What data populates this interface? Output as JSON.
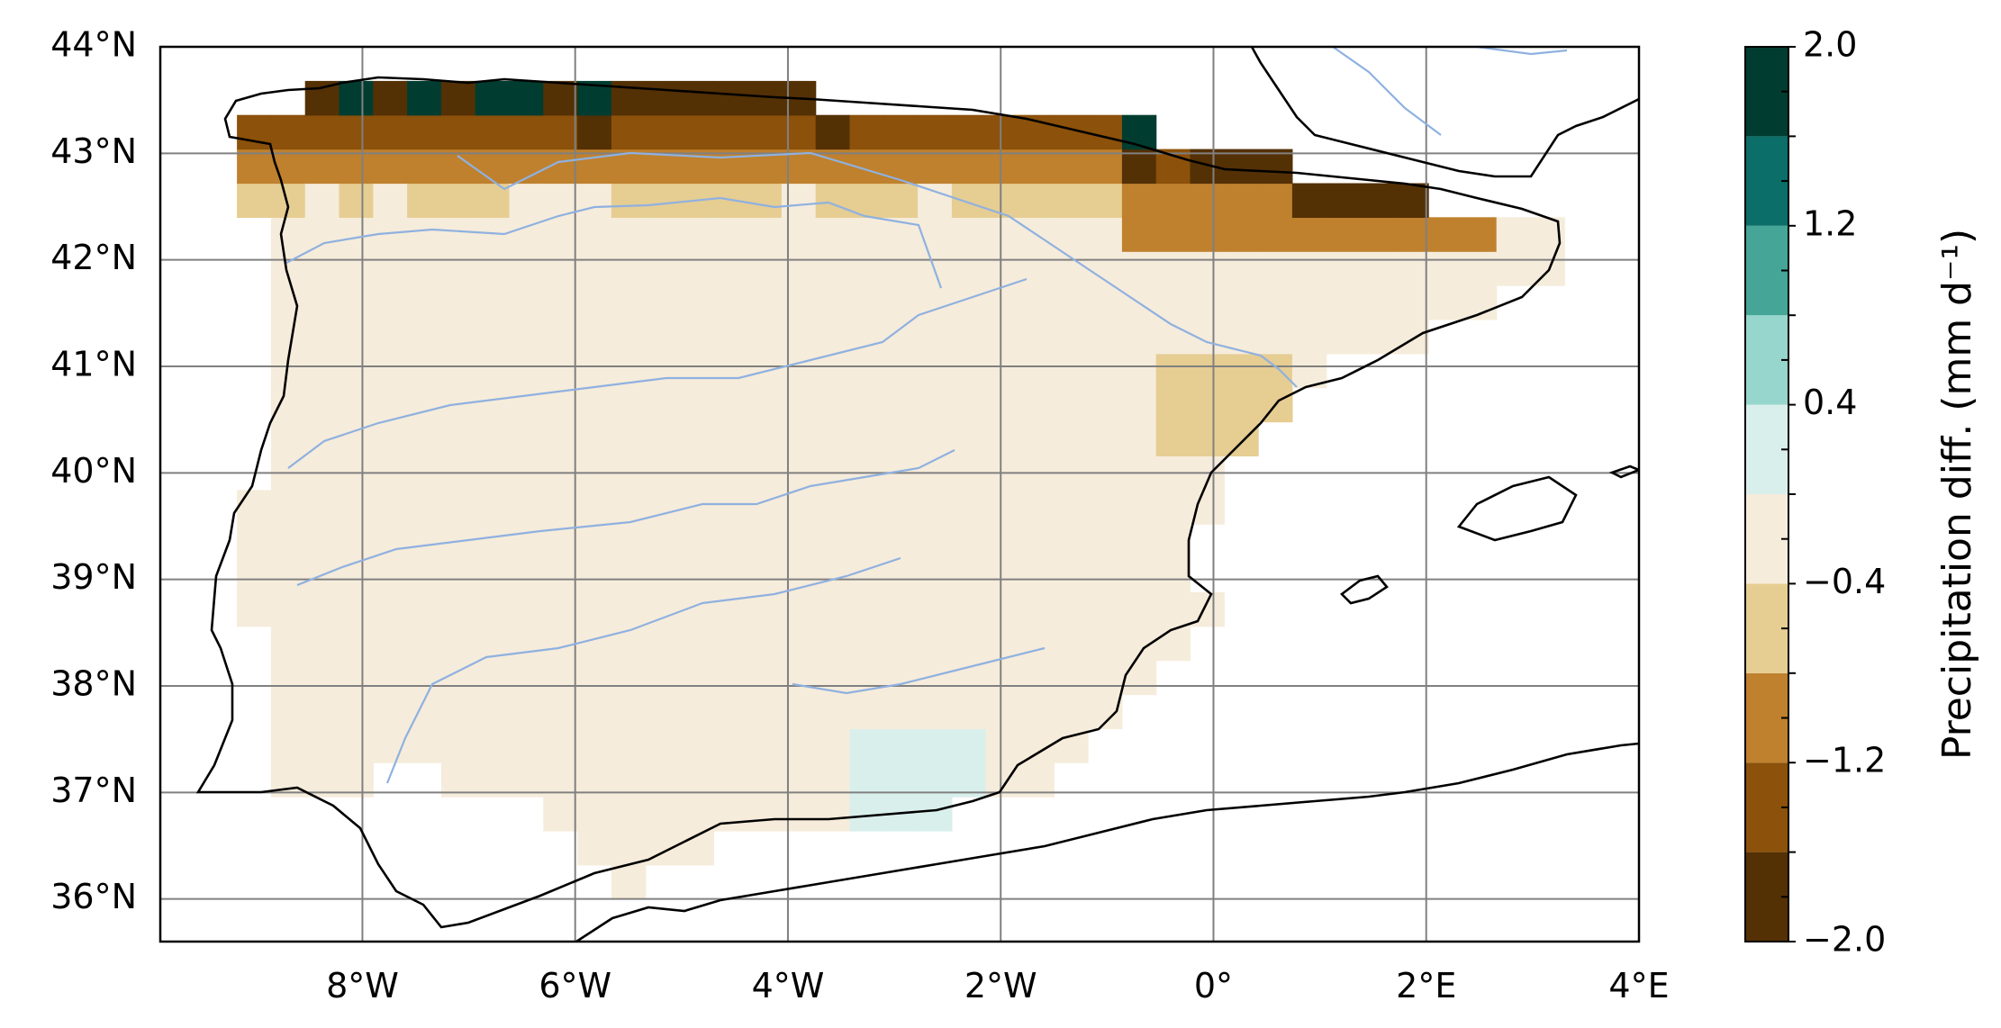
{
  "map": {
    "lon_labels": [
      "8°W",
      "6°W",
      "4°W",
      "2°W",
      "0°",
      "2°E",
      "4°E"
    ],
    "lat_labels": [
      "44°N",
      "43°N",
      "42°N",
      "41°N",
      "40°N",
      "39°N",
      "38°N",
      "37°N",
      "36°N"
    ],
    "extent": {
      "lon_min": -9.9,
      "lon_max": 4.0,
      "lat_min": 35.6,
      "lat_max": 44.0
    },
    "grid": true,
    "cell_size_deg": 0.32
  },
  "colorbar": {
    "label": "Precipitation diff. (mm d⁻¹)",
    "tick_labels": [
      "2.0",
      "1.2",
      "0.4",
      "−0.4",
      "−1.2",
      "−2.0"
    ],
    "bins": [
      {
        "from": -2.0,
        "to": -1.6,
        "color": "#543005"
      },
      {
        "from": -1.6,
        "to": -1.2,
        "color": "#8c510a"
      },
      {
        "from": -1.2,
        "to": -0.8,
        "color": "#bf812d"
      },
      {
        "from": -0.8,
        "to": -0.4,
        "color": "#e6cd92"
      },
      {
        "from": -0.4,
        "to": 0.0,
        "color": "#f6ecdb"
      },
      {
        "from": 0.0,
        "to": 0.4,
        "color": "#d9efec"
      },
      {
        "from": 0.4,
        "to": 0.8,
        "color": "#97d6cc"
      },
      {
        "from": 0.8,
        "to": 1.2,
        "color": "#45a697"
      },
      {
        "from": 1.2,
        "to": 1.6,
        "color": "#0b6e68"
      },
      {
        "from": 1.6,
        "to": 2.0,
        "color": "#003d30"
      }
    ]
  },
  "colors": {
    "coastline": "#000000",
    "rivers": "#8fb1e0",
    "gridlines": "#808080"
  }
}
